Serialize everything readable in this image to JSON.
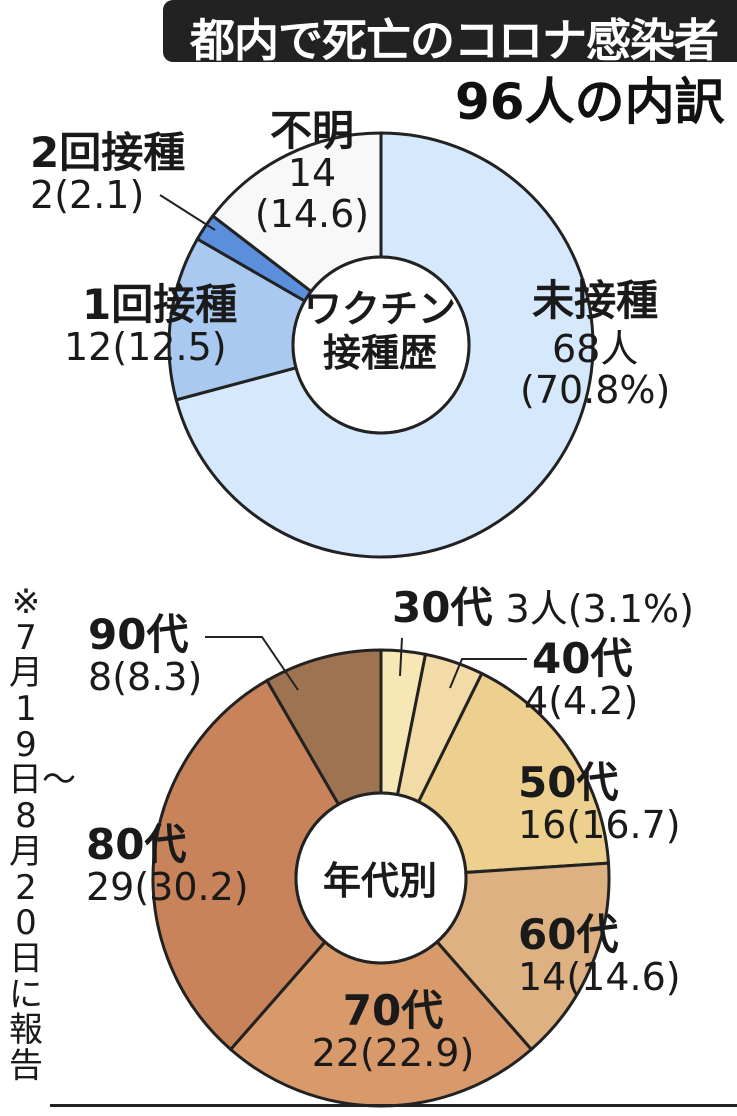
{
  "title": {
    "main": "都内で死亡のコロナ感染者",
    "sub": "96人の内訳"
  },
  "side_note": "※7月19日〜8月20日に報告",
  "chart_data": [
    {
      "type": "pie",
      "center_label": [
        "ワクチン",
        "接種歴"
      ],
      "total": 96,
      "slices": [
        {
          "name": "未接種",
          "value": 68,
          "display": "68人",
          "pct_display": "(70.8%)",
          "color": "#d6e8fb"
        },
        {
          "name": "1回接種",
          "value": 12,
          "display": "12",
          "pct_display": "(12.5)",
          "color": "#a9c9f0"
        },
        {
          "name": "2回接種",
          "value": 2,
          "display": "2",
          "pct_display": "(2.1)",
          "color": "#5b8fdc"
        },
        {
          "name": "不明",
          "value": 14,
          "display": "14",
          "pct_display": "(14.6)",
          "color": "#f8f8f8"
        }
      ]
    },
    {
      "type": "pie",
      "center_label": [
        "年代別"
      ],
      "total": 96,
      "slices": [
        {
          "name": "30代",
          "value": 3,
          "display": "3人",
          "pct_display": "(3.1%)",
          "color": "#f6e7b4"
        },
        {
          "name": "40代",
          "value": 4,
          "display": "4",
          "pct_display": "(4.2)",
          "color": "#f3dba7"
        },
        {
          "name": "50代",
          "value": 16,
          "display": "16",
          "pct_display": "(16.7)",
          "color": "#edcf8e"
        },
        {
          "name": "60代",
          "value": 14,
          "display": "14",
          "pct_display": "(14.6)",
          "color": "#ddb181"
        },
        {
          "name": "70代",
          "value": 22,
          "display": "22",
          "pct_display": "(22.9)",
          "color": "#d8996b"
        },
        {
          "name": "80代",
          "value": 29,
          "display": "29",
          "pct_display": "(30.2)",
          "color": "#c9835a"
        },
        {
          "name": "90代",
          "value": 8,
          "display": "8",
          "pct_display": "(8.3)",
          "color": "#9d7352"
        }
      ]
    }
  ]
}
